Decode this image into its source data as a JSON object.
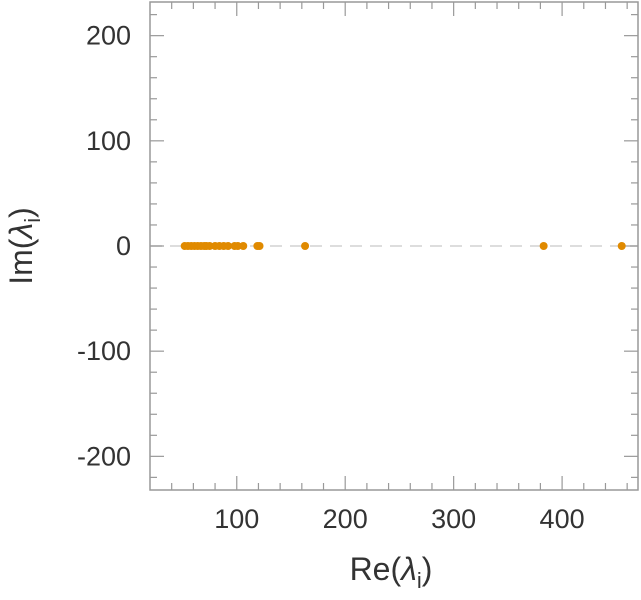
{
  "chart_data": {
    "type": "scatter",
    "title": "",
    "xlabel_main": "Re(",
    "xlabel_sym": "λ",
    "xlabel_sub": "i",
    "xlabel_close": ")",
    "ylabel_main": "Im(",
    "ylabel_sym": "λ",
    "ylabel_sub": "i",
    "ylabel_close": ")",
    "xlim": [
      20,
      470
    ],
    "ylim": [
      -232,
      232
    ],
    "x_ticks": [
      100,
      200,
      300,
      400
    ],
    "x_tick_labels": [
      "100",
      "200",
      "300",
      "400"
    ],
    "y_ticks": [
      200,
      100,
      0,
      -100,
      -200
    ],
    "y_tick_labels": [
      "200",
      "100",
      "0",
      "-100",
      "-200"
    ],
    "grid": false,
    "zero_line": true,
    "marker_color": "#E08A00",
    "series": [
      {
        "x": [
          52,
          55,
          58,
          61,
          64,
          67,
          70,
          72,
          75,
          80,
          84,
          88,
          92,
          98,
          101,
          106,
          119,
          121,
          163,
          383,
          455
        ],
        "y": [
          0,
          0,
          0,
          0,
          0,
          0,
          0,
          0,
          0,
          0,
          0,
          0,
          0,
          0,
          0,
          0,
          0,
          0,
          0,
          0,
          0
        ]
      }
    ]
  }
}
